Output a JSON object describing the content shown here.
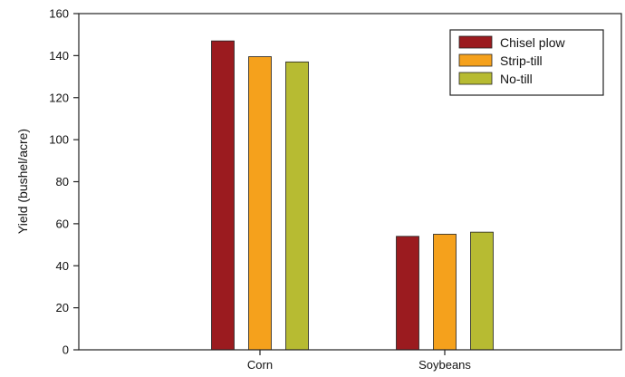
{
  "chart_data": {
    "type": "bar",
    "title": "",
    "xlabel": "",
    "ylabel": "Yield (bushel/acre)",
    "ylim": [
      0,
      160
    ],
    "yticks": [
      0,
      20,
      40,
      60,
      80,
      100,
      120,
      140,
      160
    ],
    "categories": [
      "Corn",
      "Soybeans"
    ],
    "series": [
      {
        "name": "Chisel plow",
        "color": "#9b1b1f",
        "values": [
          147,
          54
        ]
      },
      {
        "name": "Strip-till",
        "color": "#f5a11c",
        "values": [
          139.5,
          55
        ]
      },
      {
        "name": "No-till",
        "color": "#b7bb32",
        "values": [
          137,
          56
        ]
      }
    ],
    "grid": false,
    "legend_position": "top-right"
  }
}
